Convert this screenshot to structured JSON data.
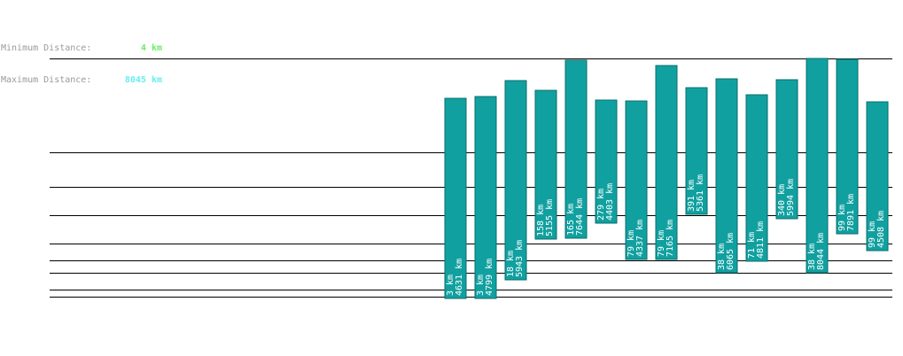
{
  "stats": {
    "min_label": "Minimum Distance:",
    "min_value": "4 km",
    "min_color": "#66ee66",
    "max_label": "Maximum Distance:",
    "max_value": "8045 km",
    "max_color": "#66eeee"
  },
  "chart_data": {
    "type": "bar",
    "title": "",
    "xlabel": "",
    "ylabel": "",
    "ylim": [
      0,
      8045
    ],
    "bar_color": "#11a0a0",
    "label_color": "#ffffff",
    "line_color": "#000000",
    "reference_lines": [
      8045,
      5991,
      5243,
      4623,
      4003,
      3640,
      3360,
      3000,
      2841
    ],
    "bars": [
      {
        "low": 2806,
        "high": 7182,
        "label_top": "3 km",
        "label_bottom": "4631 km"
      },
      {
        "low": 2806,
        "high": 7222,
        "label_top": "3 km",
        "label_bottom": "4799 km"
      },
      {
        "low": 3206,
        "high": 7563,
        "label_top": "18 km",
        "label_bottom": "5943 km"
      },
      {
        "low": 4103,
        "high": 7343,
        "label_top": "158 km",
        "label_bottom": "5155 km"
      },
      {
        "low": 4123,
        "high": 7998,
        "label_top": "165 km",
        "label_bottom": "7644 km"
      },
      {
        "low": 4443,
        "high": 7142,
        "label_top": "279 km",
        "label_bottom": "4403 km"
      },
      {
        "low": 3647,
        "high": 7122,
        "label_top": "79 km",
        "label_bottom": "4337 km"
      },
      {
        "low": 3647,
        "high": 7882,
        "label_top": "79 km",
        "label_bottom": "7165 km"
      },
      {
        "low": 4643,
        "high": 7403,
        "label_top": "391 km",
        "label_bottom": "5361 km"
      },
      {
        "low": 3366,
        "high": 7603,
        "label_top": "38 km",
        "label_bottom": "6065 km"
      },
      {
        "low": 3627,
        "high": 7262,
        "label_top": "71 km",
        "label_bottom": "4811 km"
      },
      {
        "low": 4543,
        "high": 7583,
        "label_top": "340 km",
        "label_bottom": "5994 km"
      },
      {
        "low": 3366,
        "high": 8045,
        "label_top": "38 km",
        "label_bottom": "8044 km"
      },
      {
        "low": 4223,
        "high": 8025,
        "label_top": "99 km",
        "label_bottom": "7891 km"
      },
      {
        "low": 3847,
        "high": 7102,
        "label_top": "99 km",
        "label_bottom": "4508 km"
      }
    ]
  }
}
